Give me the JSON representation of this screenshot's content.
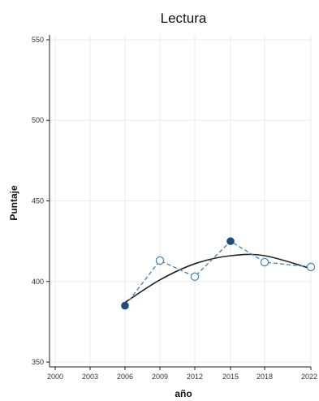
{
  "chart_data": {
    "type": "line",
    "title": "Lectura",
    "xlabel": "año",
    "ylabel": "Puntaje",
    "x_ticks": [
      "2000",
      "2003",
      "2006",
      "2009",
      "2012",
      "2015",
      "2018",
      "2022"
    ],
    "y_ticks": [
      "350",
      "400",
      "450",
      "500",
      "550"
    ],
    "xlim": [
      2000,
      2022
    ],
    "ylim": [
      347,
      553
    ],
    "grid": true,
    "series": [
      {
        "type": "line",
        "style": "dashed",
        "color": "#4a86b8",
        "marker": "circle",
        "points": [
          {
            "x": 2006,
            "y": 385,
            "filled": true
          },
          {
            "x": 2009,
            "y": 413,
            "filled": false
          },
          {
            "x": 2012,
            "y": 403,
            "filled": false
          },
          {
            "x": 2015,
            "y": 425,
            "filled": true
          },
          {
            "x": 2018,
            "y": 412,
            "filled": false
          },
          {
            "x": 2022,
            "y": 409,
            "filled": false
          }
        ]
      },
      {
        "type": "trend",
        "style": "solid",
        "color": "#222222",
        "points": [
          {
            "x": 2006,
            "y": 387
          },
          {
            "x": 2009,
            "y": 401
          },
          {
            "x": 2012,
            "y": 411
          },
          {
            "x": 2015,
            "y": 416
          },
          {
            "x": 2018,
            "y": 416
          },
          {
            "x": 2022,
            "y": 408
          }
        ]
      }
    ],
    "colors": {
      "filled_marker": "#1f4e7a",
      "dashed_line": "#4a86b8",
      "trend_line": "#222222"
    }
  }
}
